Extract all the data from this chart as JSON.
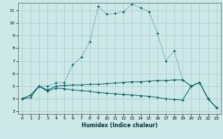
{
  "xlabel": "Humidex (Indice chaleur)",
  "background_color": "#cce8e8",
  "grid_color": "#aacccc",
  "line_color": "#006060",
  "x_min": 0,
  "x_max": 23,
  "y_min": 3,
  "y_max": 11,
  "series1_x": [
    0,
    1,
    2,
    3,
    4,
    5,
    6,
    7,
    8,
    9,
    10,
    11,
    12,
    13,
    14,
    15,
    16,
    17,
    18,
    19,
    20,
    21,
    22,
    23
  ],
  "series1_y": [
    4.0,
    4.3,
    5.0,
    5.0,
    5.25,
    5.3,
    6.7,
    7.3,
    8.5,
    11.3,
    10.7,
    10.75,
    10.9,
    11.5,
    11.2,
    10.9,
    9.2,
    7.0,
    7.8,
    5.5,
    5.0,
    5.3,
    4.0,
    3.3
  ],
  "series2_x": [
    0,
    1,
    2,
    3,
    4,
    5,
    6,
    7,
    8,
    9,
    10,
    11,
    12,
    13,
    14,
    15,
    16,
    17,
    18,
    19,
    20,
    21,
    22,
    23
  ],
  "series2_y": [
    4.0,
    4.3,
    5.0,
    4.7,
    5.0,
    5.05,
    5.1,
    5.1,
    5.15,
    5.15,
    5.2,
    5.25,
    5.3,
    5.35,
    5.35,
    5.4,
    5.45,
    5.45,
    5.5,
    5.5,
    5.0,
    5.3,
    4.0,
    3.3
  ],
  "series3_x": [
    0,
    1,
    2,
    3,
    4,
    5,
    6,
    7,
    8,
    9,
    10,
    11,
    12,
    13,
    14,
    15,
    16,
    17,
    18,
    19,
    20,
    21,
    22,
    23
  ],
  "series3_y": [
    4.0,
    4.1,
    5.0,
    4.6,
    4.85,
    4.8,
    4.7,
    4.65,
    4.6,
    4.5,
    4.45,
    4.4,
    4.35,
    4.3,
    4.25,
    4.2,
    4.1,
    4.0,
    3.95,
    3.9,
    5.0,
    5.3,
    4.0,
    3.3
  ]
}
